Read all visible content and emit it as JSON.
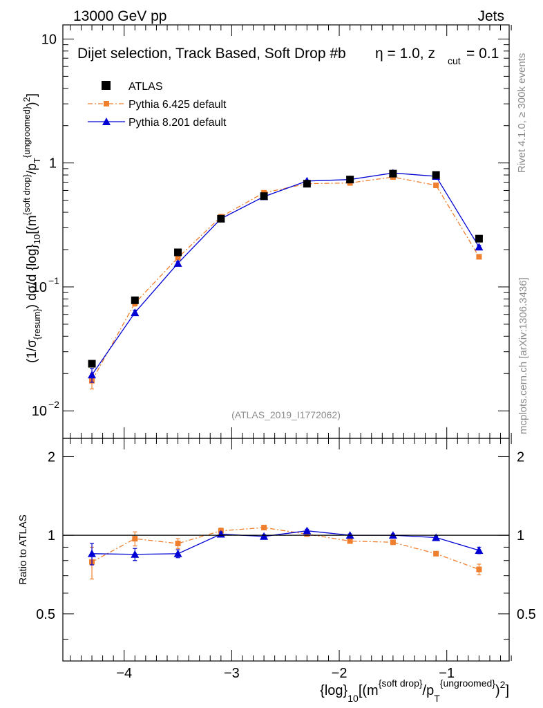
{
  "header": {
    "energy_label": "13000 GeV pp",
    "process_label": "Jets",
    "selection_label": "Dijet selection, Track Based, Soft Drop #b",
    "eta_label": "η = 1.0, z",
    "zcut_sub": "cut",
    "zcut_value": " = 0.1",
    "analysis_id": "(ATLAS_2019_I1772062)",
    "side_rivet": "Rivet 4.1.0, ≥ 300k events",
    "side_mcplots": "mcplots.cern.ch [arXiv:1306.3436]"
  },
  "colors": {
    "atlas": "#000000",
    "pythia6": "#f07f2d",
    "pythia8": "#0000d4",
    "side_text": "#8c8c8c",
    "analysis_text": "#8c8c8c"
  },
  "legend": [
    {
      "key": "atlas",
      "label": "ATLAS"
    },
    {
      "key": "pythia6",
      "label": "Pythia 6.425 default"
    },
    {
      "key": "pythia8",
      "label": "Pythia 8.201 default"
    }
  ],
  "axes": {
    "main_ylabel_parts": [
      "(1/σ",
      "{resum}",
      ") dσ/d {log}",
      "10",
      "[(m",
      "{soft drop}",
      "/p",
      "T",
      "{ungroomed}",
      ")",
      "2",
      "]"
    ],
    "ratio_ylabel": "Ratio to ATLAS",
    "xlabel_parts": [
      "{log}",
      "10",
      "[(m",
      "{soft drop}",
      "/p",
      "T",
      "{ungroomed}",
      ")",
      "2",
      "]"
    ],
    "main_yticks": [
      {
        "value": 10,
        "label": "10"
      },
      {
        "value": 1,
        "label": "1"
      },
      {
        "value": 0.1,
        "label": "10",
        "exp": "−1"
      },
      {
        "value": 0.01,
        "label": "10",
        "exp": "−2"
      }
    ],
    "ratio_yticks": [
      {
        "value": 2,
        "label": "2"
      },
      {
        "value": 1,
        "label": "1"
      },
      {
        "value": 0.5,
        "label": "0.5"
      }
    ],
    "xticks": [
      {
        "value": -4,
        "label": "−4"
      },
      {
        "value": -3,
        "label": "−3"
      },
      {
        "value": -2,
        "label": "−2"
      },
      {
        "value": -1,
        "label": "−1"
      }
    ]
  },
  "chart_data": {
    "type": "scatter",
    "title": "Dijet selection, Track Based, Soft Drop #b η = 1.0, z_cut = 0.1",
    "xlabel": "{log}10[(m{soft drop}/pT{ungroomed})2]",
    "ylabel": "(1/σ{resum}) dσ/d {log}10[(m{soft drop}/pT{ungroomed})2]",
    "xlim": [
      -4.57,
      -0.42
    ],
    "ylim": [
      0.006,
      13
    ],
    "yscale": "log",
    "ratio_ylim": [
      0.33,
      2.35
    ],
    "ratio_yscale": "log",
    "x": [
      -4.3,
      -3.9,
      -3.5,
      -3.1,
      -2.7,
      -2.3,
      -1.9,
      -1.5,
      -1.1,
      -0.7
    ],
    "series": [
      {
        "name": "ATLAS",
        "marker": "square",
        "values": [
          0.024,
          0.078,
          0.19,
          0.355,
          0.54,
          0.68,
          0.735,
          0.82,
          0.8,
          0.245
        ]
      },
      {
        "name": "Pythia 6.425 default",
        "marker": "square-small",
        "line": "dash-dot",
        "values": [
          0.0175,
          0.074,
          0.172,
          0.368,
          0.575,
          0.68,
          0.69,
          0.77,
          0.66,
          0.175
        ],
        "errors": [
          0.0025,
          0.004,
          0.006,
          0.007,
          0.009,
          0.01,
          0.01,
          0.011,
          0.01,
          0.006
        ],
        "ratio": [
          0.79,
          0.97,
          0.93,
          1.04,
          1.07,
          1.01,
          0.95,
          0.94,
          0.85,
          0.74
        ],
        "ratio_errors": [
          0.11,
          0.06,
          0.04,
          0.025,
          0.02,
          0.015,
          0.015,
          0.015,
          0.015,
          0.035
        ]
      },
      {
        "name": "Pythia 8.201 default",
        "marker": "triangle",
        "line": "solid",
        "values": [
          0.0195,
          0.062,
          0.155,
          0.355,
          0.535,
          0.715,
          0.735,
          0.83,
          0.78,
          0.21
        ],
        "errors": [
          0.0025,
          0.003,
          0.005,
          0.007,
          0.009,
          0.01,
          0.01,
          0.011,
          0.01,
          0.006
        ],
        "ratio": [
          0.85,
          0.845,
          0.85,
          1.01,
          0.99,
          1.04,
          1.0,
          1.0,
          0.98,
          0.875
        ],
        "ratio_errors": [
          0.08,
          0.045,
          0.03,
          0.02,
          0.015,
          0.015,
          0.012,
          0.012,
          0.012,
          0.025
        ]
      }
    ]
  }
}
